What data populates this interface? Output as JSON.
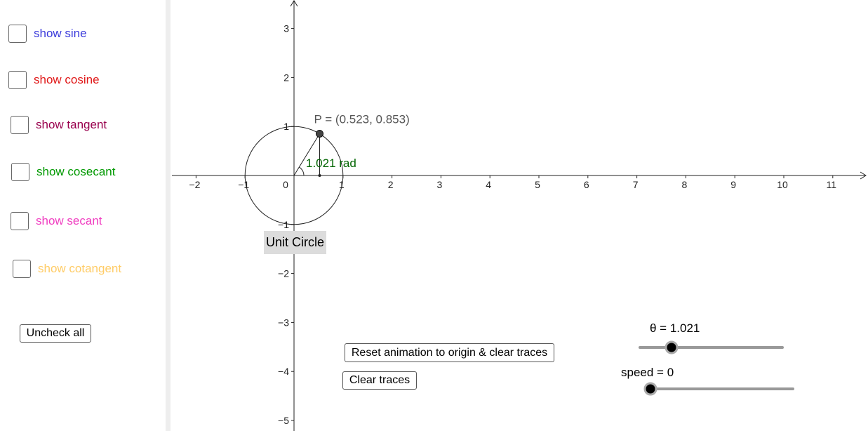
{
  "sidebar": {
    "checkboxes": [
      {
        "label": "show sine",
        "color": "#3b3bdb"
      },
      {
        "label": "show cosine",
        "color": "#e01818"
      },
      {
        "label": "show tangent",
        "color": "#99004d"
      },
      {
        "label": "show cosecant",
        "color": "#009900"
      },
      {
        "label": "show secant",
        "color": "#f03cc0"
      },
      {
        "label": "show cotangent",
        "color": "#ffcc66"
      }
    ],
    "button": "Uncheck all"
  },
  "graph": {
    "x_ticks": [
      {
        "value": -2,
        "label": "−2"
      },
      {
        "value": -1,
        "label": "−1"
      },
      1,
      2,
      3,
      4,
      5,
      6,
      7,
      8,
      9,
      10,
      11
    ],
    "y_ticks": [
      3,
      2,
      1,
      {
        "value": -1,
        "label": "−1"
      },
      {
        "value": -2,
        "label": "−2"
      },
      {
        "value": -3,
        "label": "−3"
      },
      {
        "value": -4,
        "label": "−4"
      },
      {
        "value": -5,
        "label": "−5"
      }
    ],
    "origin_label": "0",
    "point": {
      "label": "P = (0.523, 0.853)",
      "x": 0.523,
      "y": 0.853
    },
    "angle_label": "1.021 rad",
    "caption": "Unit Circle"
  },
  "buttons": [
    "Reset animation to origin & clear traces",
    "Clear traces"
  ],
  "sliders": [
    {
      "label": "θ = 1.021"
    },
    {
      "label": "speed = 0"
    }
  ]
}
